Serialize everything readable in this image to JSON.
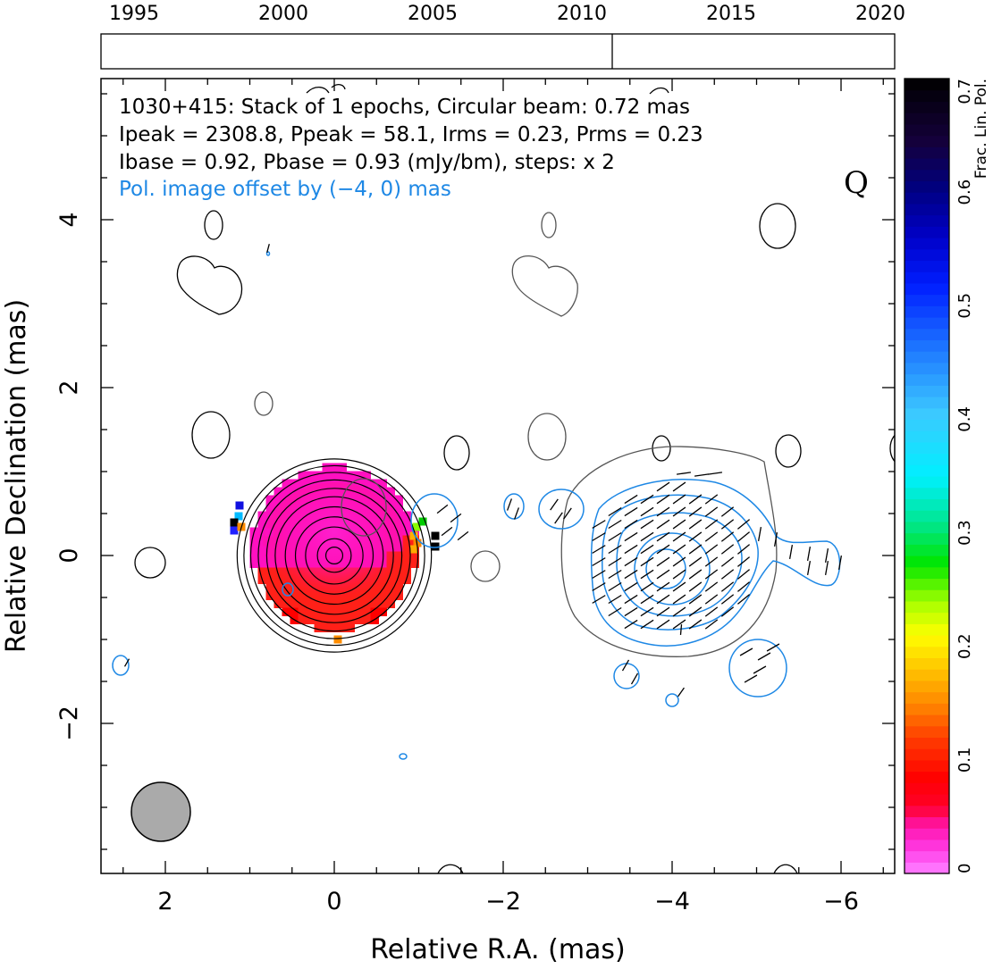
{
  "timeline": {
    "years": [
      "1995",
      "2000",
      "2005",
      "2010",
      "2015",
      "2020"
    ],
    "year_range": [
      1995,
      2020
    ],
    "epoch_marks": [
      2010.8
    ]
  },
  "header_lines": {
    "line1": "1030+415: Stack of 1 epochs, Circular beam: 0.72 mas",
    "line2": "Ipeak = 2308.8, Ppeak = 58.1, Irms = 0.23, Prms = 0.23",
    "line3": "Ibase = 0.92, Pbase = 0.93 (mJy/bm), steps: x 2",
    "line4": "Pol. image offset by (−4, 0) mas"
  },
  "band_label": "Q",
  "colorbar": {
    "label": "Frac. Lin. Pol.",
    "ticks": [
      "0",
      "0.1",
      "0.2",
      "0.3",
      "0.4",
      "0.5",
      "0.6",
      "0.7"
    ],
    "range": [
      0,
      0.7
    ],
    "colors": [
      "#ffffff",
      "#ff40ff",
      "#ff0000",
      "#ff8c00",
      "#ffff00",
      "#00dd00",
      "#00ffff",
      "#1e78ff",
      "#0000ff",
      "#000080",
      "#000000"
    ]
  },
  "chart_data": {
    "type": "contour map",
    "xlabel": "Relative R.A. (mas)",
    "ylabel": "Relative Declination (mas)",
    "xlim": [
      2.8,
      -6.7
    ],
    "ylim": [
      -3.8,
      5.8
    ],
    "x_ticks": [
      "2",
      "0",
      "−2",
      "−4",
      "−6"
    ],
    "x_tick_values": [
      2,
      0,
      -2,
      -4,
      -6
    ],
    "y_ticks": [
      "−2",
      "0",
      "2",
      "4"
    ],
    "y_tick_values": [
      -2,
      0,
      2,
      4
    ],
    "total_intensity_contours": {
      "center": [
        0,
        0
      ],
      "levels": 11,
      "radii_mas": [
        1.15,
        1.07,
        0.99,
        0.9,
        0.8,
        0.7,
        0.58,
        0.46,
        0.34,
        0.2,
        0.1
      ]
    },
    "polarized_intensity_contours": {
      "center": [
        -4.0,
        0.05
      ],
      "levels": 5
    },
    "beam": {
      "center": [
        2.0,
        -3.1
      ],
      "diameter_mas": 0.72
    },
    "colors": {
      "total_intensity": "#000000",
      "offset_total_intensity": "#555555",
      "polarized": "#1e88e5",
      "beam_fill": "#aaaaaa"
    }
  }
}
